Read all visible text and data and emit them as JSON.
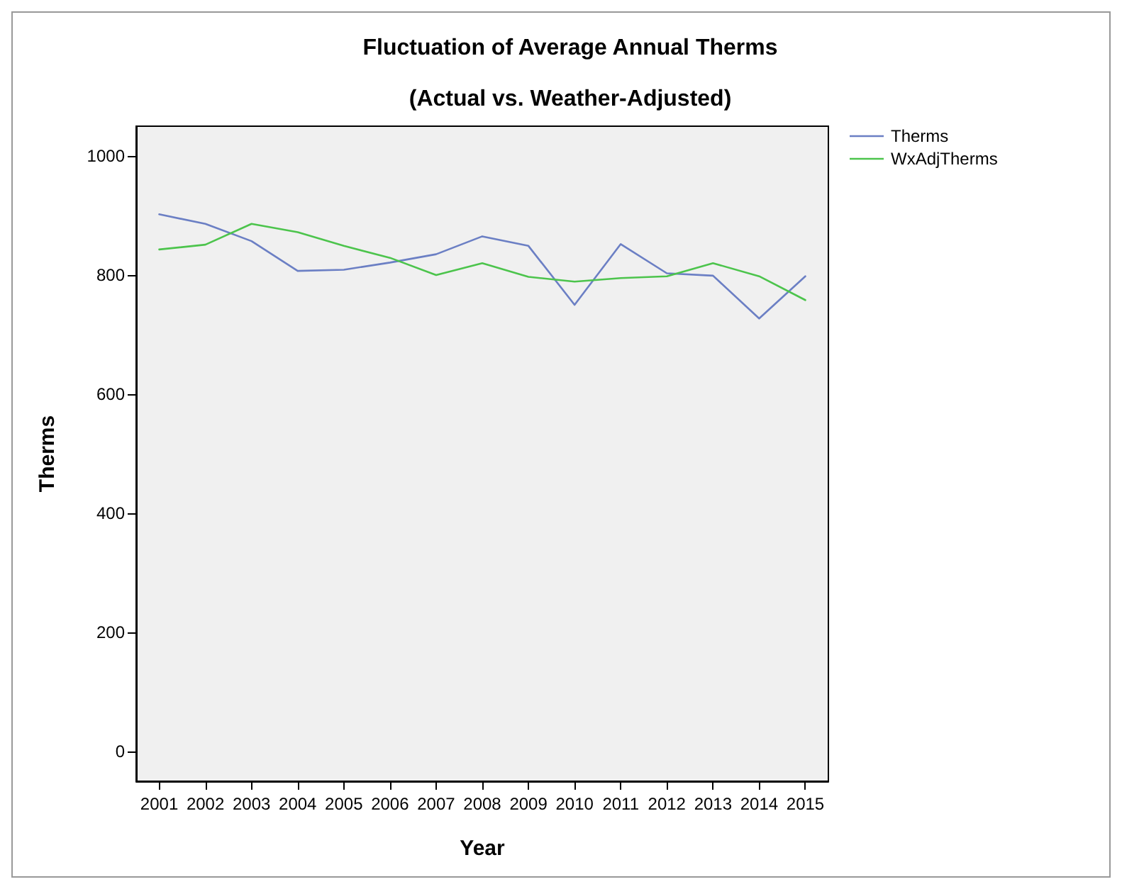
{
  "chart_data": {
    "type": "line",
    "title": "Fluctuation of Average Annual Therms",
    "subtitle": "(Actual vs. Weather-Adjusted)",
    "xlabel": "Year",
    "ylabel": "Therms",
    "categories": [
      "2001",
      "2002",
      "2003",
      "2004",
      "2005",
      "2006",
      "2007",
      "2008",
      "2009",
      "2010",
      "2011",
      "2012",
      "2013",
      "2014",
      "2015"
    ],
    "series": [
      {
        "name": "Therms",
        "color": "#6b7fc4",
        "values": [
          902,
          886,
          857,
          807,
          809,
          821,
          835,
          865,
          849,
          750,
          852,
          803,
          799,
          727,
          798
        ]
      },
      {
        "name": "WxAdjTherms",
        "color": "#4cc44c",
        "values": [
          843,
          851,
          886,
          872,
          849,
          829,
          800,
          820,
          797,
          789,
          795,
          798,
          820,
          798,
          758
        ]
      }
    ],
    "ylim": [
      -50,
      1050
    ],
    "yticks": [
      0,
      200,
      400,
      600,
      800,
      1000
    ],
    "grid": false,
    "legend": "top right",
    "marker": "none",
    "line_style": "solid"
  }
}
